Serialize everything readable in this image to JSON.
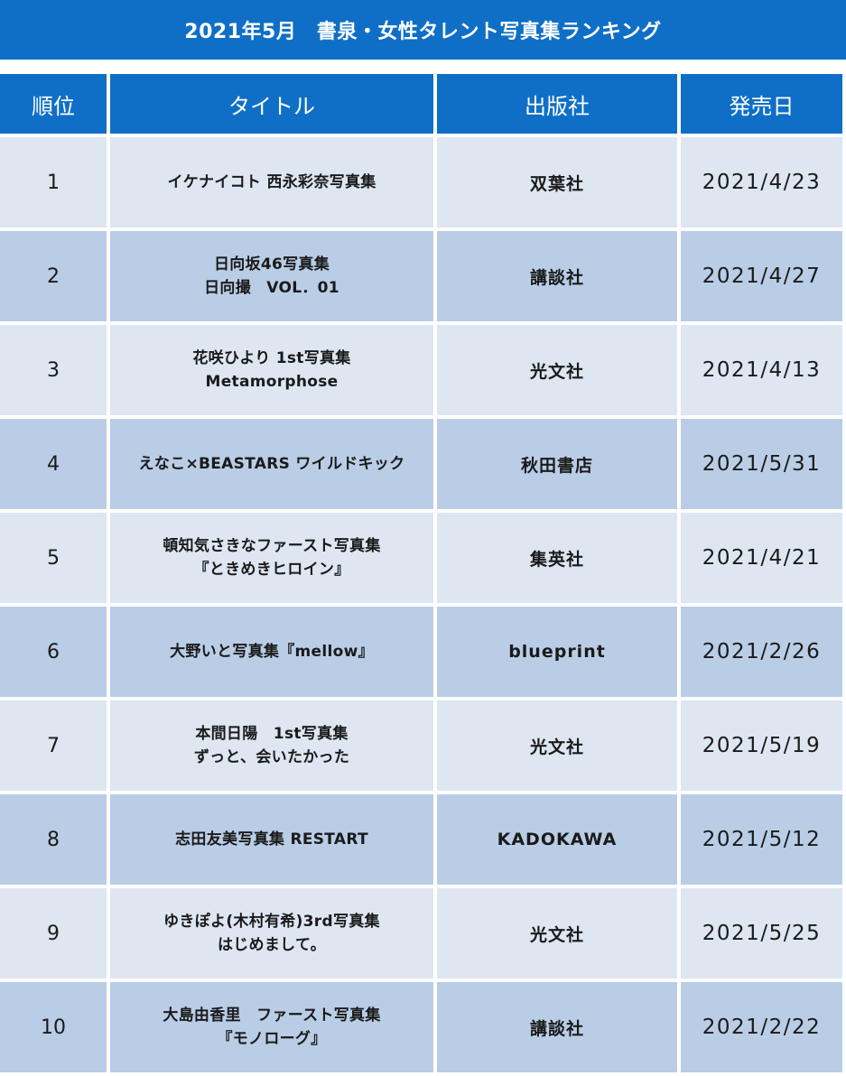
{
  "page_title": "2021年5月　書泉・女性タレント写真集ランキング",
  "columns": {
    "rank": "順位",
    "title": "タイトル",
    "publisher": "出版社",
    "release_date": "発売日"
  },
  "rows": [
    {
      "rank": "1",
      "title_line1": "イケナイコト 西永彩奈写真集",
      "title_line2": "",
      "publisher": "双葉社",
      "date": "2021/4/23"
    },
    {
      "rank": "2",
      "title_line1": "日向坂46写真集",
      "title_line2": "日向撮　VOL．01",
      "publisher": "講談社",
      "date": "2021/4/27"
    },
    {
      "rank": "3",
      "title_line1": "花咲ひより 1st写真集",
      "title_line2": "Metamorphose",
      "publisher": "光文社",
      "date": "2021/4/13"
    },
    {
      "rank": "4",
      "title_line1": "えなこ×BEASTARS ワイルドキック",
      "title_line2": "",
      "publisher": "秋田書店",
      "date": "2021/5/31"
    },
    {
      "rank": "5",
      "title_line1": "頓知気さきなファースト写真集",
      "title_line2": "『ときめきヒロイン』",
      "publisher": "集英社",
      "date": "2021/4/21"
    },
    {
      "rank": "6",
      "title_line1": "大野いと写真集『mellow』",
      "title_line2": "",
      "publisher": "blueprint",
      "date": "2021/2/26"
    },
    {
      "rank": "7",
      "title_line1": "本間日陽　1st写真集",
      "title_line2": "ずっと、会いたかった",
      "publisher": "光文社",
      "date": "2021/5/19"
    },
    {
      "rank": "8",
      "title_line1": "志田友美写真集 RESTART",
      "title_line2": "",
      "publisher": "KADOKAWA",
      "date": "2021/5/12"
    },
    {
      "rank": "9",
      "title_line1": "ゆきぽよ(木村有希)3rd写真集",
      "title_line2": "はじめまして。",
      "publisher": "光文社",
      "date": "2021/5/25"
    },
    {
      "rank": "10",
      "title_line1": "大島由香里　ファースト写真集",
      "title_line2": "『モノローグ』",
      "publisher": "講談社",
      "date": "2021/2/22"
    }
  ],
  "colors": {
    "header_blue": "#0f6fc6",
    "row_light": "#dde6f1",
    "row_dark": "#b9cde6"
  }
}
